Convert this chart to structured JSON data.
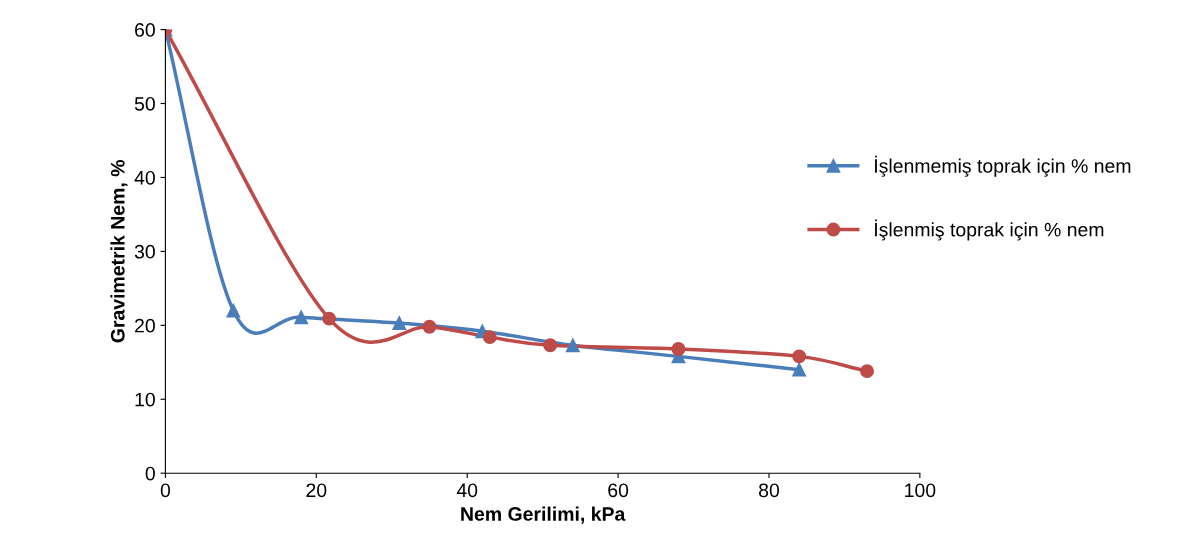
{
  "chart_data": {
    "type": "line",
    "xlabel": "Nem Gerilimi, kPa",
    "ylabel": "Gravimetrik Nem, %",
    "xlim": [
      0,
      100
    ],
    "xticks": [
      0,
      20,
      40,
      60,
      80,
      100
    ],
    "ylim": [
      0,
      60
    ],
    "yticks": [
      0,
      10,
      20,
      30,
      40,
      50,
      60
    ],
    "grid": false,
    "legend": "right",
    "line_style": "solid",
    "series": [
      {
        "name": "İşlenmemiş toprak için % nem",
        "color": "#4a7ebb",
        "marker": "triangle",
        "x": [
          0,
          9,
          18,
          31,
          42,
          54,
          68,
          84
        ],
        "values": [
          60,
          22,
          21.1,
          20.3,
          19.2,
          17.3,
          15.8,
          14
        ]
      },
      {
        "name": "İşlenmiş toprak için % nem",
        "color": "#be4b48",
        "marker": "circle",
        "x": [
          0,
          21.7,
          35,
          43,
          51,
          68,
          84,
          93
        ],
        "values": [
          60,
          20.9,
          19.8,
          18.4,
          17.3,
          16.8,
          15.8,
          13.8
        ]
      }
    ]
  }
}
